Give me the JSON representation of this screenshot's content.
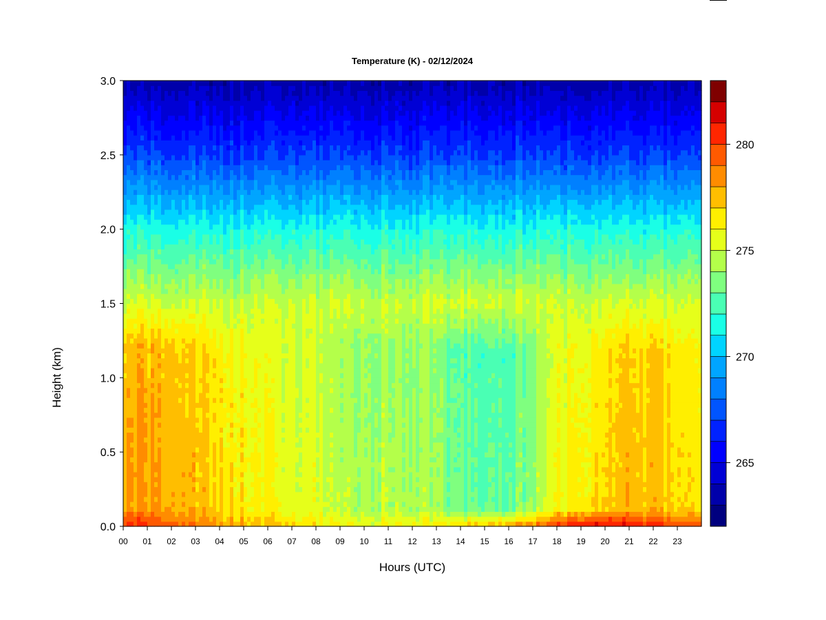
{
  "chart_data": {
    "type": "heatmap",
    "title": "Temperature (K) - 02/12/2024",
    "xlabel": "Hours (UTC)",
    "ylabel": "Height (km)",
    "x_ticks": [
      "00",
      "01",
      "02",
      "03",
      "04",
      "05",
      "06",
      "07",
      "08",
      "09",
      "10",
      "11",
      "12",
      "13",
      "14",
      "15",
      "16",
      "17",
      "18",
      "19",
      "20",
      "21",
      "22",
      "23"
    ],
    "xlim": [
      0,
      24
    ],
    "y_ticks": [
      "0.0",
      "0.5",
      "1.0",
      "1.5",
      "2.0",
      "2.5",
      "3.0"
    ],
    "ylim": [
      0.0,
      3.0
    ],
    "colorbar": {
      "ticks": [
        "265",
        "270",
        "275",
        "280"
      ],
      "tick_values": [
        265,
        270,
        275,
        280
      ],
      "range": [
        262,
        283
      ],
      "levels": 21,
      "colors": [
        "#00007f",
        "#0000aa",
        "#0000d5",
        "#0000ff",
        "#0022ff",
        "#0055ff",
        "#0080ff",
        "#00a5ff",
        "#00d4ff",
        "#1affe6",
        "#4affb4",
        "#7fff7f",
        "#b4ff4a",
        "#e6ff1a",
        "#ffef00",
        "#ffbe00",
        "#ff8c00",
        "#ff5a00",
        "#ff2600",
        "#d50000",
        "#7f0000"
      ]
    },
    "profiles": {
      "hours": [
        0,
        1,
        2,
        3,
        4,
        5,
        6,
        7,
        8,
        9,
        10,
        11,
        12,
        13,
        14,
        15,
        16,
        17,
        18,
        19,
        20,
        21,
        22,
        23,
        24
      ],
      "surface_temp_K": [
        280.5,
        280.0,
        279.5,
        279.0,
        278.5,
        278.0,
        277.5,
        277.0,
        276.5,
        276.0,
        276.0,
        276.0,
        276.0,
        276.5,
        277.0,
        277.5,
        278.0,
        279.0,
        280.5,
        281.0,
        281.5,
        281.0,
        280.5,
        280.0,
        280.0
      ],
      "boundary_layer_temp_K": [
        278.0,
        278.0,
        278.0,
        277.5,
        277.0,
        276.5,
        276.0,
        275.5,
        275.5,
        274.5,
        274.5,
        274.5,
        274.5,
        274.0,
        273.0,
        273.0,
        273.0,
        274.0,
        276.0,
        276.5,
        277.0,
        277.5,
        277.5,
        277.0,
        276.5
      ],
      "temp_at_1_5km_K": 275.0,
      "temp_at_2_0km_K": 271.5,
      "temp_at_2_5km_K": 267.0,
      "temp_at_3_0km_K": 263.5
    }
  }
}
